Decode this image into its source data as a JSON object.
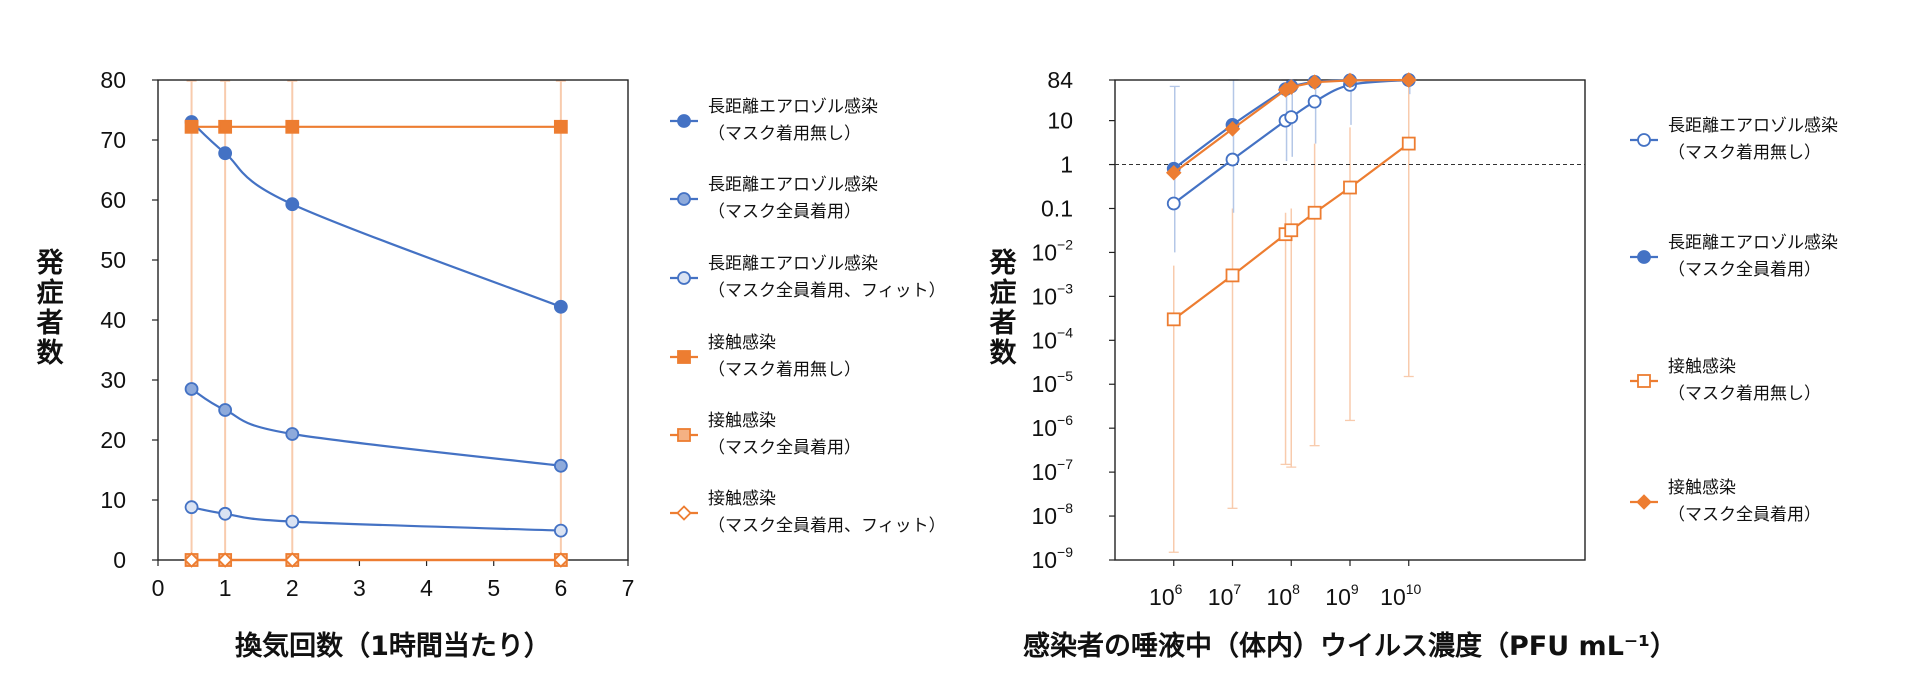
{
  "colors": {
    "blue": "#4472c4",
    "blue_fill_mid": "#8eaadb",
    "blue_fill_light": "#dae3f3",
    "orange": "#ed7d31",
    "orange_fill_mid": "#f4b183",
    "error_bar_blue": "#b4c7e7",
    "error_bar_orange": "#f8cbad"
  },
  "chart_data": [
    {
      "type": "line",
      "xlabel": "換気回数（1時間当たり）",
      "ylabel": "発症者数",
      "xlim": [
        0,
        7
      ],
      "ylim": [
        0,
        80
      ],
      "x_ticks": [
        0,
        1,
        2,
        3,
        4,
        5,
        6,
        7
      ],
      "y_ticks": [
        0,
        10,
        20,
        30,
        40,
        50,
        60,
        70,
        80
      ],
      "x": [
        0.5,
        1,
        2,
        6
      ],
      "grid": false,
      "legend_position": "right",
      "series": [
        {
          "name": "長距離エアロゾル感染（マスク着用無し）",
          "legend_lines": [
            "長距離エアロゾル感染",
            "（マスク着用無し）"
          ],
          "marker": "circle",
          "fill": "blue",
          "stroke": "blue",
          "smooth": true,
          "values": [
            73,
            67.8,
            59.3,
            42.2
          ]
        },
        {
          "name": "長距離エアロゾル感染（マスク全員着用）",
          "legend_lines": [
            "長距離エアロゾル感染",
            "（マスク全員着用）"
          ],
          "marker": "circle",
          "fill": "blue_fill_mid",
          "stroke": "blue",
          "smooth": true,
          "values": [
            28.5,
            25,
            21,
            15.7
          ]
        },
        {
          "name": "長距離エアロゾル感染（マスク全員着用、フィット）",
          "legend_lines": [
            "長距離エアロゾル感染",
            "（マスク全員着用、フィット）"
          ],
          "marker": "circle",
          "fill": "blue_fill_light",
          "stroke": "blue",
          "smooth": true,
          "values": [
            8.8,
            7.7,
            6.4,
            4.9
          ]
        },
        {
          "name": "接触感染（マスク着用無し）",
          "legend_lines": [
            "接触感染",
            "（マスク着用無し）"
          ],
          "marker": "square",
          "fill": "orange",
          "stroke": "orange",
          "smooth": false,
          "values": [
            72.2,
            72.2,
            72.2,
            72.2
          ]
        },
        {
          "name": "接触感染（マスク全員着用）",
          "legend_lines": [
            "接触感染",
            "（マスク全員着用）"
          ],
          "marker": "square",
          "fill": "orange_fill_mid",
          "stroke": "orange",
          "smooth": false,
          "values": [
            0,
            0,
            0,
            0
          ]
        },
        {
          "name": "接触感染（マスク全員着用、フィット）",
          "legend_lines": [
            "接触感染",
            "（マスク全員着用、フィット）"
          ],
          "marker": "diamond",
          "fill": "#ffffff",
          "stroke": "orange",
          "smooth": false,
          "values": [
            0,
            0,
            0,
            0
          ]
        }
      ]
    },
    {
      "type": "line",
      "xlabel": "感染者の唾液中（体内）ウイルス濃度（PFU mL⁻¹）",
      "ylabel": "発症者数",
      "x_scale": "log",
      "y_scale": "log",
      "xlim": [
        100000,
        10000000000000
      ],
      "ylim": [
        1e-09,
        84
      ],
      "x_tick_values": [
        1000000,
        10000000,
        100000000,
        1000000000,
        10000000000
      ],
      "x_tick_labels": [
        {
          "base": "10",
          "exp": "6"
        },
        {
          "base": "10",
          "exp": "7"
        },
        {
          "base": "10",
          "exp": "8"
        },
        {
          "base": "10",
          "exp": "9"
        },
        {
          "base": "10",
          "exp": "10"
        }
      ],
      "y_tick_values": [
        84,
        10,
        1,
        0.1,
        0.01,
        0.001,
        0.0001,
        1e-05,
        1e-06,
        1e-07,
        1e-08,
        1e-09
      ],
      "y_tick_labels": [
        {
          "base": "84",
          "exp": ""
        },
        {
          "base": "10",
          "exp": ""
        },
        {
          "base": "1",
          "exp": ""
        },
        {
          "base": "0.1",
          "exp": ""
        },
        {
          "base": "10",
          "exp": "-2"
        },
        {
          "base": "10",
          "exp": "-3"
        },
        {
          "base": "10",
          "exp": "-4"
        },
        {
          "base": "10",
          "exp": "-5"
        },
        {
          "base": "10",
          "exp": "-6"
        },
        {
          "base": "10",
          "exp": "-7"
        },
        {
          "base": "10",
          "exp": "-8"
        },
        {
          "base": "10",
          "exp": "-9"
        }
      ],
      "reference_line_y": 1,
      "grid": false,
      "legend_position": "right",
      "series": [
        {
          "name": "長距離エアロゾル感染（マスク着用無し）",
          "legend_lines": [
            "長距離エアロゾル感染",
            "（マスク着用無し）"
          ],
          "marker": "circle",
          "fill": "#ffffff",
          "stroke": "blue",
          "smooth": true,
          "x": [
            1000000,
            10000000,
            80000000,
            100000000,
            250000000,
            1000000000,
            10000000000
          ],
          "values": [
            0.13,
            1.3,
            10,
            12,
            27,
            65,
            84
          ]
        },
        {
          "name": "長距離エアロゾル感染（マスク全員着用）",
          "legend_lines": [
            "長距離エアロゾル感染",
            "（マスク全員着用）"
          ],
          "marker": "circle",
          "fill": "blue",
          "stroke": "blue",
          "smooth": true,
          "x": [
            1000000,
            10000000,
            80000000,
            100000000,
            250000000,
            1000000000,
            10000000000
          ],
          "values": [
            0.8,
            8,
            52,
            60,
            76,
            82,
            84
          ]
        },
        {
          "name": "接触感染（マスク着用無し）",
          "legend_lines": [
            "接触感染",
            "（マスク着用無し）"
          ],
          "marker": "square",
          "fill": "#ffffff",
          "stroke": "orange",
          "smooth": false,
          "x": [
            1000000,
            10000000,
            80000000,
            100000000,
            250000000,
            1000000000,
            10000000000
          ],
          "values": [
            0.0003,
            0.003,
            0.026,
            0.032,
            0.08,
            0.3,
            3
          ]
        },
        {
          "name": "接触感染（マスク全員着用）",
          "legend_lines": [
            "接触感染",
            "（マスク全員着用）"
          ],
          "marker": "diamond",
          "fill": "orange",
          "stroke": "orange",
          "smooth": false,
          "x": [
            1000000,
            10000000,
            80000000,
            100000000,
            250000000,
            1000000000,
            10000000000
          ],
          "values": [
            0.65,
            6.5,
            50,
            58,
            75,
            82,
            84
          ]
        }
      ]
    }
  ]
}
